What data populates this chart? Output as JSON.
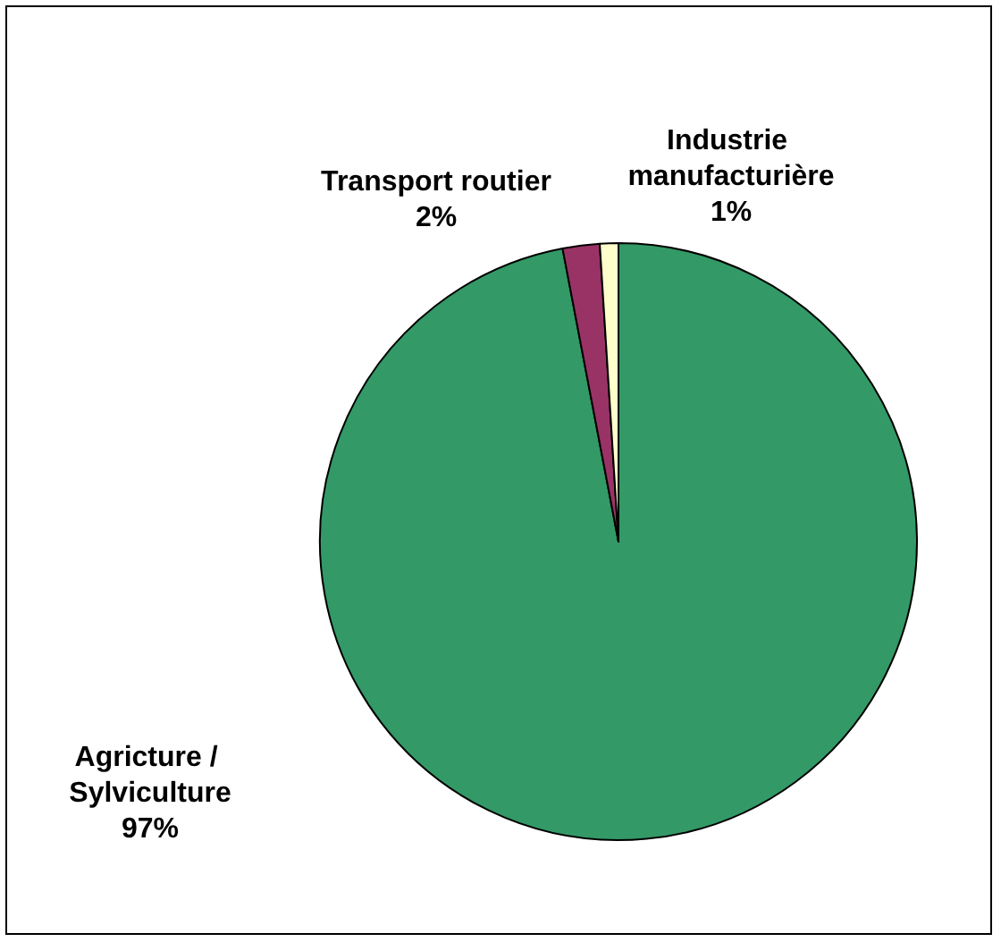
{
  "chart_data": {
    "type": "pie",
    "categories": [
      "Agricture / Sylviculture",
      "Transport routier",
      "Industrie manufacturière"
    ],
    "values": [
      97,
      2,
      1
    ],
    "colors": [
      "#339966",
      "#993366",
      "#ffffcc"
    ],
    "value_labels": [
      "97%",
      "2%",
      "1%"
    ]
  }
}
